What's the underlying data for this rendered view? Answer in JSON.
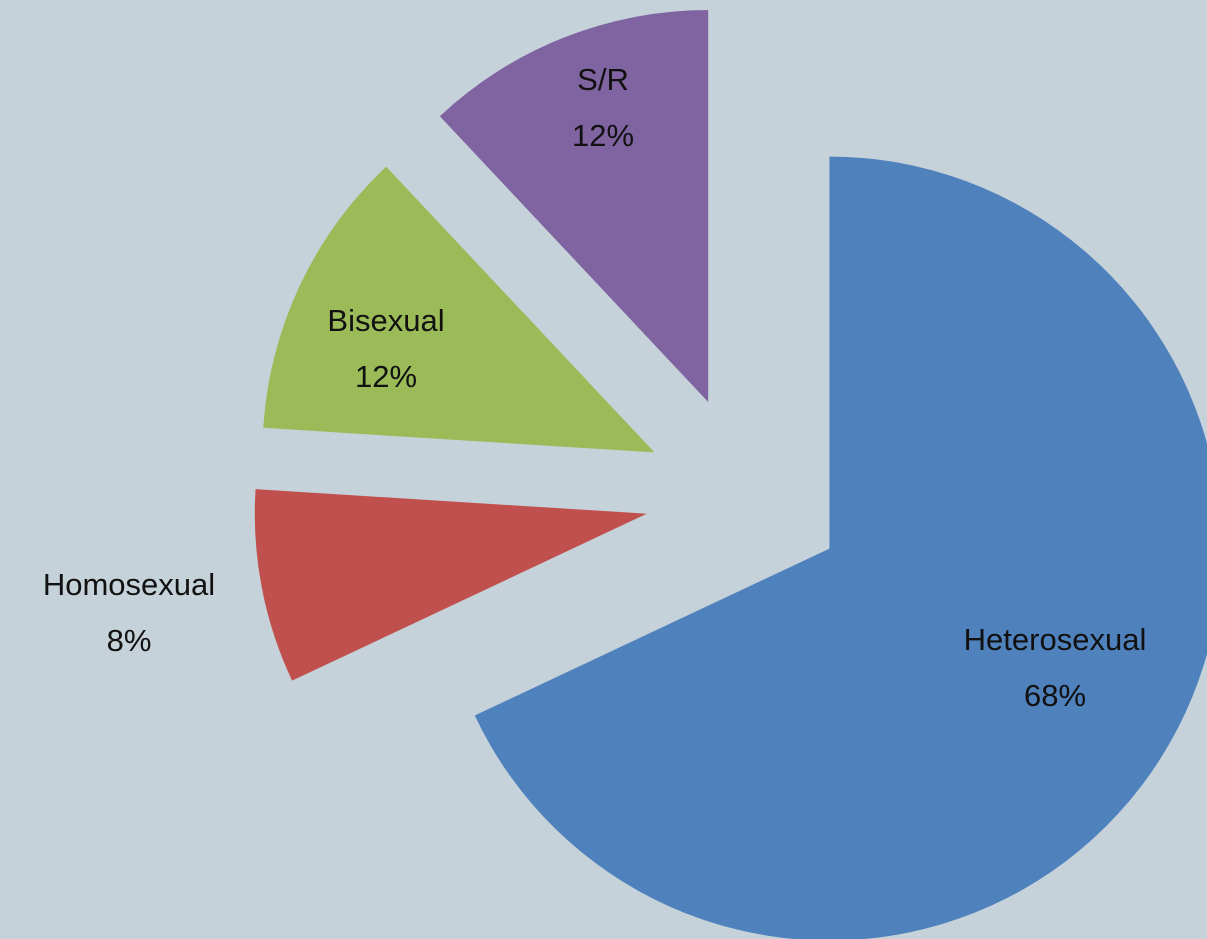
{
  "chart_data": {
    "type": "pie",
    "categories": [
      "Heterosexual",
      "Homosexual",
      "Bisexual",
      "S/R"
    ],
    "values": [
      68,
      8,
      12,
      12
    ],
    "value_labels": [
      "68%",
      "8%",
      "12%",
      "12%"
    ],
    "colors": [
      "#4f81bd",
      "#c0504d",
      "#9bbb59",
      "#8064a2"
    ]
  }
}
